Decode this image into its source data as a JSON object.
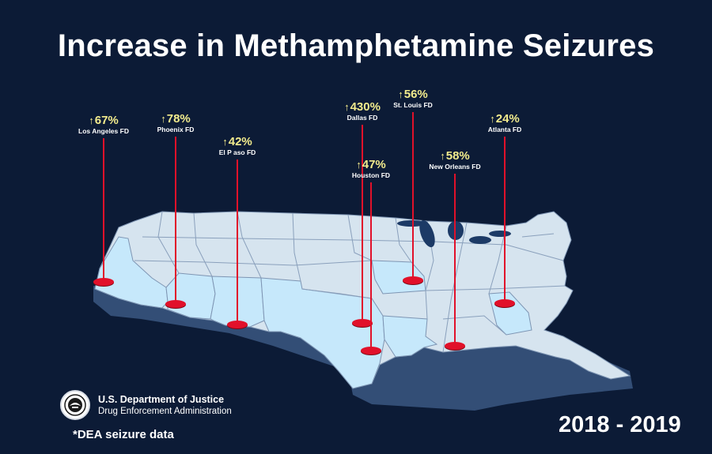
{
  "title": "Increase in Methamphetamine Seizures",
  "markers": [
    {
      "id": "los-angeles",
      "change": "67%",
      "city": "Los Angeles FD"
    },
    {
      "id": "phoenix",
      "change": "78%",
      "city": "Phoenix FD"
    },
    {
      "id": "el-paso",
      "change": "42%",
      "city": "El P aso FD"
    },
    {
      "id": "dallas",
      "change": "430%",
      "city": "Dallas FD"
    },
    {
      "id": "houston",
      "change": "47%",
      "city": "Houston FD"
    },
    {
      "id": "st-louis",
      "change": "56%",
      "city": "St. Louis FD"
    },
    {
      "id": "new-orleans",
      "change": "58%",
      "city": "New Orleans FD"
    },
    {
      "id": "atlanta",
      "change": "24%",
      "city": "Atlanta FD"
    }
  ],
  "icons": {
    "increase": "up-arrow-icon",
    "seal": "doj-seal-icon"
  },
  "agency": {
    "line1": "U.S. Department of Justice",
    "line2": "Drug Enforcement Administration"
  },
  "note": "*DEA seizure data",
  "years": "2018 - 2019",
  "colors": {
    "background": "#0c1b36",
    "map_land": "#d6e4ef",
    "map_highlight": "#c6e8fb",
    "map_edge": "#334e76",
    "pin": "#e1112a",
    "percent_text": "#f3ec8d"
  }
}
